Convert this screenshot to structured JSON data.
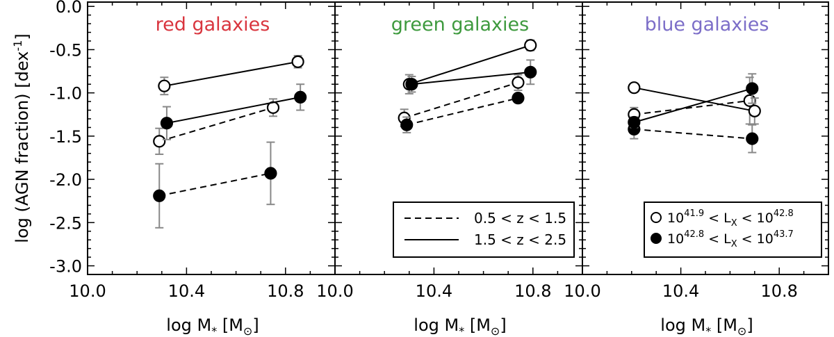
{
  "chart_data": {
    "type": "scatter",
    "shared": {
      "ylabel_main": "log (AGN fraction) [dex",
      "ylabel_sup": "-1",
      "ylabel_close": "]",
      "xlabel_main": "log M",
      "xlabel_sub": "*",
      "xlabel_unit_open": " [M",
      "xlabel_unit_sub": "⊙",
      "xlabel_unit_close": "]",
      "ylim": [
        -3.1,
        0.05
      ],
      "xlim": [
        10.0,
        11.0
      ],
      "yticks": [
        "0.0",
        "-0.5",
        "-1.0",
        "-1.5",
        "-2.0",
        "-2.5",
        "-3.0"
      ],
      "ytick_values": [
        0.0,
        -0.5,
        -1.0,
        -1.5,
        -2.0,
        -2.5,
        -3.0
      ],
      "xtick_values": [
        10.0,
        10.4,
        10.8
      ],
      "xticks_panel1": [
        "10.0",
        "10.4",
        "10.8"
      ],
      "xticks_panel2": [
        "10.0",
        "10.4",
        "10.8"
      ],
      "xticks_panel3": [
        "10.0",
        "10.4",
        "10.8"
      ],
      "line_legend": [
        {
          "label": "0.5 < z < 1.5",
          "style": "dashed"
        },
        {
          "label": "1.5 < z < 2.5",
          "style": "solid"
        }
      ],
      "marker_legend": [
        {
          "marker": "open",
          "pre": "10",
          "sup1": "41.9",
          "mid": " < L",
          "sub": "X",
          "mid2": " < 10",
          "sup2": "42.8"
        },
        {
          "marker": "filled",
          "pre": "10",
          "sup1": "42.8",
          "mid": " < L",
          "sub": "X",
          "mid2": " < 10",
          "sup2": "43.7"
        }
      ],
      "errorbar_color": "#888888"
    },
    "panels": [
      {
        "title": "red galaxies",
        "title_color": "#d9353e",
        "series": [
          {
            "name": "open, 0.5<z<1.5",
            "marker": "open",
            "style": "dashed",
            "x": [
              10.29,
              10.75
            ],
            "y": [
              -1.56,
              -1.17
            ],
            "err": [
              0.15,
              0.1
            ]
          },
          {
            "name": "open, 1.5<z<2.5",
            "marker": "open",
            "style": "solid",
            "x": [
              10.31,
              10.85
            ],
            "y": [
              -0.92,
              -0.64
            ],
            "err": [
              0.1,
              0.07
            ]
          },
          {
            "name": "filled, 0.5<z<1.5",
            "marker": "filled",
            "style": "dashed",
            "x": [
              10.29,
              10.74
            ],
            "y": [
              -2.19,
              -1.93
            ],
            "err": [
              0.37,
              0.36
            ]
          },
          {
            "name": "filled, 1.5<z<2.5",
            "marker": "filled",
            "style": "solid",
            "x": [
              10.32,
              10.86
            ],
            "y": [
              -1.35,
              -1.05
            ],
            "err": [
              0.19,
              0.15
            ]
          }
        ]
      },
      {
        "title": "green galaxies",
        "title_color": "#3e9a3e",
        "series": [
          {
            "name": "open, 0.5<z<1.5",
            "marker": "open",
            "style": "dashed",
            "x": [
              10.28,
              10.74
            ],
            "y": [
              -1.29,
              -0.88
            ],
            "err": [
              0.1,
              0.09
            ]
          },
          {
            "name": "open, 1.5<z<2.5",
            "marker": "open",
            "style": "solid",
            "x": [
              10.3,
              10.79
            ],
            "y": [
              -0.9,
              -0.45
            ],
            "err": [
              0.11,
              0.06
            ]
          },
          {
            "name": "filled, 0.5<z<1.5",
            "marker": "filled",
            "style": "dashed",
            "x": [
              10.29,
              10.74
            ],
            "y": [
              -1.37,
              -1.06
            ],
            "err": [
              0.09,
              0.05
            ]
          },
          {
            "name": "filled, 1.5<z<2.5",
            "marker": "filled",
            "style": "solid",
            "x": [
              10.31,
              10.79
            ],
            "y": [
              -0.9,
              -0.76
            ],
            "err": [
              0.09,
              0.14
            ]
          }
        ]
      },
      {
        "title": "blue galaxies",
        "title_color": "#7c6ec8",
        "series": [
          {
            "name": "open, 0.5<z<1.5",
            "marker": "open",
            "style": "dashed",
            "x": [
              10.21,
              10.68
            ],
            "y": [
              -1.25,
              -1.09
            ],
            "err": [
              0.08,
              0.27
            ]
          },
          {
            "name": "open, 1.5<z<2.5",
            "marker": "open",
            "style": "solid",
            "x": [
              10.21,
              10.7
            ],
            "y": [
              -0.94,
              -1.21
            ],
            "err": [
              0.05,
              0.15
            ]
          },
          {
            "name": "filled, 0.5<z<1.5",
            "marker": "filled",
            "style": "dashed",
            "x": [
              10.21,
              10.69
            ],
            "y": [
              -1.42,
              -1.53
            ],
            "err": [
              0.11,
              0.16
            ]
          },
          {
            "name": "filled, 1.5<z<2.5",
            "marker": "filled",
            "style": "solid",
            "x": [
              10.21,
              10.69
            ],
            "y": [
              -1.34,
              -0.95
            ],
            "err": [
              0.06,
              0.17
            ]
          }
        ]
      }
    ]
  }
}
